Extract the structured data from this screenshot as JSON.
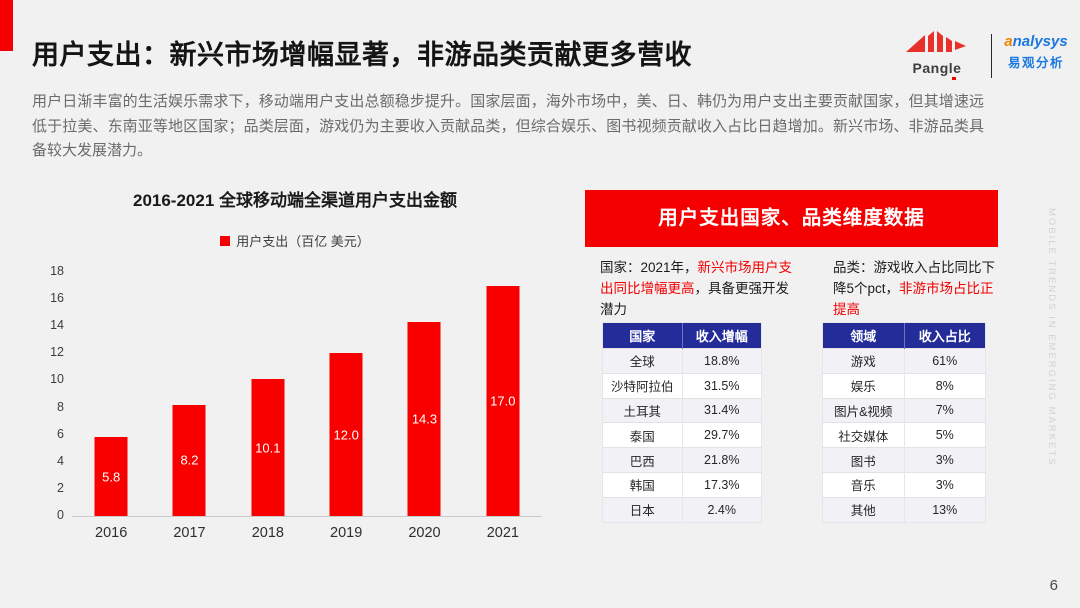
{
  "slide": {
    "title": "用户支出：新兴市场增幅显著，非游品类贡献更多营收",
    "intro": "用户日渐丰富的生活娱乐需求下，移动端用户支出总额稳步提升。国家层面，海外市场中，美、日、韩仍为用户支出主要贡献国家，但其增速远低于拉美、东南亚等地区国家；品类层面，游戏仍为主要收入贡献品类，但综合娱乐、图书视频贡献收入占比日趋增加。新兴市场、非游品类具备较大发展潜力。",
    "side_watermark": "MOBILE TRENDS IN EMERGING MARKETS",
    "page_number": "6",
    "colors": {
      "accent_red": "#f40000",
      "bar_red": "#f90000",
      "table_header_blue": "#232c99",
      "note_red": "#f20000"
    }
  },
  "logos": {
    "pangle_label": "Pangle",
    "analysys_swirl": "a",
    "analysys_en_rest": "nalysys",
    "analysys_cn": "易观分析"
  },
  "chart_data": {
    "type": "bar",
    "title": "2016-2021 全球移动端全渠道用户支出金额",
    "legend": "用户支出（百亿 美元）",
    "categories": [
      "2016",
      "2017",
      "2018",
      "2019",
      "2020",
      "2021"
    ],
    "values": [
      5.8,
      8.2,
      10.1,
      12.0,
      14.3,
      17.0
    ],
    "value_labels": [
      "5.8",
      "8.2",
      "10.1",
      "12.0",
      "14.3",
      "17.0"
    ],
    "ylim": [
      0,
      18
    ],
    "ytick_step": 2,
    "grid": false,
    "legend_position": "top",
    "bar_color": "#f90000"
  },
  "panel": {
    "header": "用户支出国家、品类维度数据",
    "notes": [
      {
        "name": "note-country",
        "segments": [
          {
            "text": "国家：2021年，",
            "red": false
          },
          {
            "text": "新兴市场用户支出同比增幅更高",
            "red": true
          },
          {
            "text": "，具备更强开发潜力",
            "red": false
          }
        ]
      },
      {
        "name": "note-category",
        "segments": [
          {
            "text": "品类：游戏收入占比同比下降5个pct，",
            "red": false
          },
          {
            "text": "非游市场占比正提高",
            "red": true
          }
        ]
      }
    ],
    "tables": [
      {
        "name": "country-table",
        "headers": [
          "国家",
          "收入增幅"
        ],
        "rows": [
          [
            "全球",
            "18.8%"
          ],
          [
            "沙特阿拉伯",
            "31.5%"
          ],
          [
            "土耳其",
            "31.4%"
          ],
          [
            "泰国",
            "29.7%"
          ],
          [
            "巴西",
            "21.8%"
          ],
          [
            "韩国",
            "17.3%"
          ],
          [
            "日本",
            "2.4%"
          ]
        ]
      },
      {
        "name": "category-table",
        "headers": [
          "领域",
          "收入占比"
        ],
        "rows": [
          [
            "游戏",
            "61%"
          ],
          [
            "娱乐",
            "8%"
          ],
          [
            "图片&视频",
            "7%"
          ],
          [
            "社交媒体",
            "5%"
          ],
          [
            "图书",
            "3%"
          ],
          [
            "音乐",
            "3%"
          ],
          [
            "其他",
            "13%"
          ]
        ]
      }
    ]
  }
}
